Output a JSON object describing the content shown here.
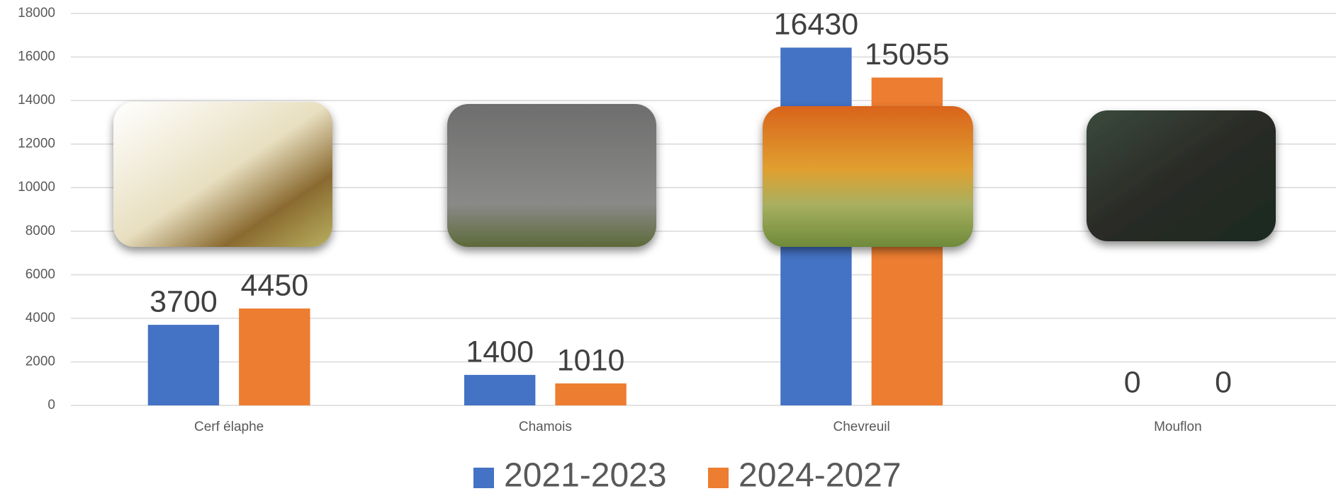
{
  "chart_data": {
    "type": "bar",
    "categories": [
      "Cerf élaphe",
      "Chamois",
      "Chevreuil",
      "Mouflon"
    ],
    "series": [
      {
        "name": "2021-2023",
        "color": "#4472c4",
        "values": [
          3700,
          1400,
          16430,
          0
        ]
      },
      {
        "name": "2024-2027",
        "color": "#ed7d31",
        "values": [
          4450,
          1010,
          15055,
          0
        ]
      }
    ],
    "ylim": [
      0,
      18000
    ],
    "yticks": [
      0,
      2000,
      4000,
      6000,
      8000,
      10000,
      12000,
      14000,
      16000,
      18000
    ],
    "grid": true
  }
}
